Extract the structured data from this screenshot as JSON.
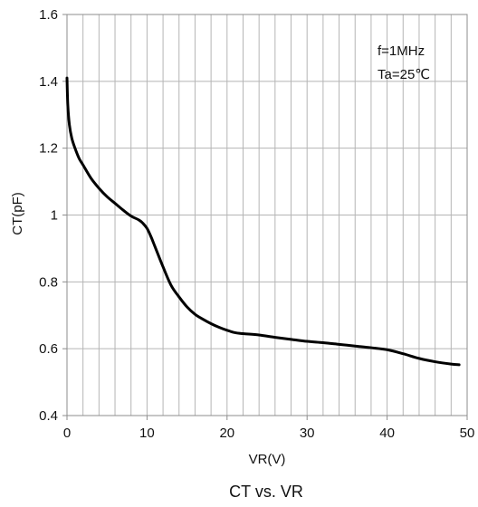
{
  "chart_data": {
    "type": "line",
    "title": "CT vs. VR",
    "xlabel": "VR(V)",
    "ylabel": "CT(pF)",
    "xlim": [
      0,
      50
    ],
    "ylim": [
      0.4,
      1.6
    ],
    "x_ticks": [
      0,
      10,
      20,
      30,
      40,
      50
    ],
    "x_tick_labels": [
      "0",
      "10",
      "20",
      "30",
      "40",
      "50"
    ],
    "y_ticks": [
      0.4,
      0.6,
      0.8,
      1.0,
      1.2,
      1.4,
      1.6
    ],
    "y_tick_labels": [
      "0.4",
      "0.6",
      "0.8",
      "1",
      "1.2",
      "1.4",
      "1.6"
    ],
    "x_minor_grid_step": 2,
    "y_minor_grid_step": 0.2,
    "grid": true,
    "annotations": [
      "f=1MHz",
      "Ta=25℃"
    ],
    "series": [
      {
        "color": "#000000",
        "x": [
          0,
          0.1,
          0.3,
          0.6,
          1,
          1.5,
          2,
          3,
          4,
          5,
          6,
          7,
          8,
          9,
          9.5,
          10,
          10.5,
          11,
          12,
          13,
          14,
          15,
          16,
          17,
          18,
          19,
          20,
          21,
          22,
          24,
          26,
          28,
          30,
          32,
          34,
          36,
          38,
          40,
          42,
          44,
          46,
          48,
          49
        ],
        "y": [
          1.41,
          1.33,
          1.27,
          1.23,
          1.2,
          1.17,
          1.15,
          1.11,
          1.08,
          1.055,
          1.035,
          1.015,
          0.997,
          0.985,
          0.975,
          0.96,
          0.935,
          0.905,
          0.845,
          0.79,
          0.755,
          0.725,
          0.703,
          0.688,
          0.675,
          0.664,
          0.655,
          0.648,
          0.645,
          0.641,
          0.634,
          0.628,
          0.622,
          0.618,
          0.613,
          0.608,
          0.603,
          0.597,
          0.585,
          0.571,
          0.561,
          0.554,
          0.552
        ]
      }
    ]
  }
}
